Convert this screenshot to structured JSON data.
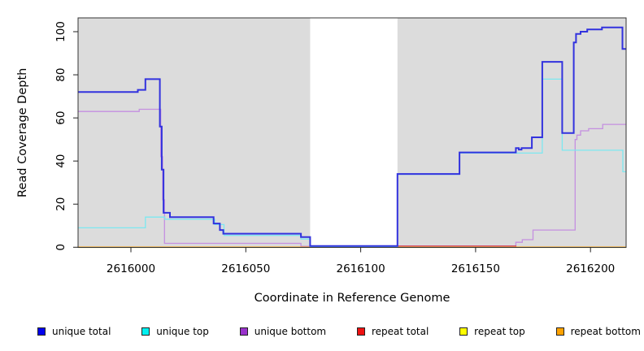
{
  "chart_data": {
    "type": "step-line",
    "title": "",
    "xlabel": "Coordinate in Reference Genome",
    "ylabel": "Read Coverage Depth",
    "x_ticks": [
      2616000,
      2616050,
      2616100,
      2616150,
      2616200
    ],
    "y_ticks": [
      0,
      20,
      40,
      60,
      80,
      100
    ],
    "x_range": [
      2615977,
      2616215.5
    ],
    "y_range": [
      0,
      106
    ],
    "grid": false,
    "panel_background": "#DCDCDC",
    "masked_region": {
      "x_start": 2616078,
      "x_end": 2616116,
      "color": "#FFFFFF"
    },
    "series": [
      {
        "name": "unique total",
        "color": "#3232DE",
        "width": 2,
        "segments": [
          [
            [
              2615977,
              72
            ],
            [
              2616003,
              73
            ],
            [
              2616006.3,
              78
            ],
            [
              2616012.6,
              56
            ],
            [
              2616013.4,
              36
            ],
            [
              2616014.2,
              16
            ],
            [
              2616017,
              14
            ],
            [
              2616036,
              11
            ],
            [
              2616038.7,
              8
            ],
            [
              2616040.2,
              6.3
            ],
            [
              2616074,
              4.7
            ],
            [
              2616078,
              0.6
            ],
            [
              2616116,
              34
            ],
            [
              2616143,
              44
            ],
            [
              2616167.5,
              46
            ],
            [
              2616168.8,
              45.3
            ],
            [
              2616170,
              46
            ],
            [
              2616174.5,
              51
            ],
            [
              2616179,
              86
            ],
            [
              2616187.7,
              53
            ],
            [
              2616192.7,
              95
            ],
            [
              2616193.7,
              99
            ],
            [
              2616195.7,
              100
            ],
            [
              2616198.6,
              101
            ],
            [
              2616205,
              102
            ],
            [
              2616213.9,
              92
            ],
            [
              2616215.5,
              92
            ]
          ]
        ]
      },
      {
        "name": "unique top",
        "color": "#7CE8F0",
        "width": 1.3,
        "segments": [
          [
            [
              2615977,
              9
            ],
            [
              2616006.3,
              14
            ],
            [
              2616014.8,
              13
            ],
            [
              2616036.5,
              10.5
            ],
            [
              2616040.5,
              5.5
            ],
            [
              2616074,
              3.8
            ],
            [
              2616078,
              0.3
            ],
            [
              2616116,
              33.8
            ],
            [
              2616143,
              43.7
            ],
            [
              2616179,
              78
            ],
            [
              2616187.7,
              45
            ],
            [
              2616214.1,
              35
            ],
            [
              2616215.5,
              35
            ]
          ]
        ]
      },
      {
        "name": "unique bottom",
        "color": "#C48FE0",
        "width": 1.3,
        "segments": [
          [
            [
              2615977,
              63
            ],
            [
              2616003.6,
              64
            ],
            [
              2616013,
              42
            ],
            [
              2616013.8,
              22
            ],
            [
              2616014.6,
              1.8
            ],
            [
              2616074,
              0.4
            ],
            [
              2616167.5,
              2.3
            ],
            [
              2616170.3,
              3.5
            ],
            [
              2616175,
              8
            ],
            [
              2616193.3,
              50
            ],
            [
              2616194.1,
              52
            ],
            [
              2616195.7,
              54
            ],
            [
              2616199.2,
              55
            ],
            [
              2616205.3,
              57
            ],
            [
              2616215.5,
              57
            ]
          ]
        ]
      },
      {
        "name": "repeat total",
        "color": "#D25878",
        "width": 1.3,
        "segments": [
          [
            [
              2615977,
              0
            ],
            [
              2616078,
              0.6
            ],
            [
              2616167.5,
              0
            ],
            [
              2616215.5,
              0
            ]
          ]
        ]
      },
      {
        "name": "repeat top",
        "color": "#FFFF00",
        "width": 1.3,
        "segments": [
          [
            [
              2615977,
              0
            ],
            [
              2616215.5,
              0
            ]
          ]
        ]
      },
      {
        "name": "repeat bottom",
        "color": "#FFA200",
        "width": 1.6,
        "segments": [
          [
            [
              2615977,
              0
            ],
            [
              2616078,
              0
            ]
          ],
          [
            [
              2616116,
              0
            ],
            [
              2616215.5,
              0
            ]
          ]
        ]
      }
    ],
    "draw_order": [
      "unique bottom",
      "repeat top",
      "repeat total",
      "repeat bottom",
      "unique top",
      "unique total"
    ],
    "legend_position": "bottom"
  },
  "legend": {
    "items": [
      {
        "label": "unique total",
        "color": "#0000EE"
      },
      {
        "label": "unique top",
        "color": "#00F0F0"
      },
      {
        "label": "unique bottom",
        "color": "#9932CC"
      },
      {
        "label": "repeat total",
        "color": "#EE1111"
      },
      {
        "label": "repeat top",
        "color": "#FFFF00"
      },
      {
        "label": "repeat bottom",
        "color": "#FFA200"
      }
    ]
  }
}
